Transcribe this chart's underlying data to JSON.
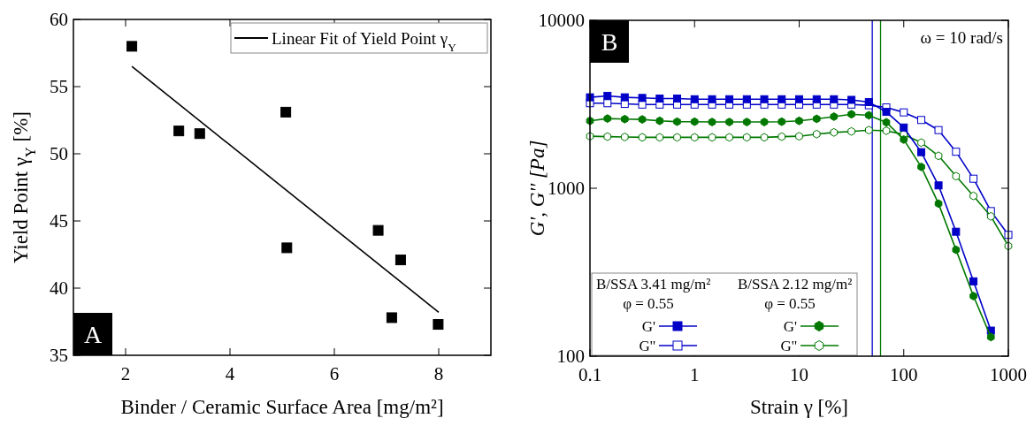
{
  "chart_data": [
    {
      "type": "scatter",
      "xlabel": "Binder / Ceramic Surface Area [mg/m²]",
      "ylabel": "Yield Point γ$_{Y}$ [%]",
      "annotations": [
        "A"
      ],
      "xlim": [
        1,
        9
      ],
      "xticks": [
        2,
        4,
        6,
        8
      ],
      "ylim": [
        35,
        60
      ],
      "yticks": [
        35,
        40,
        45,
        50,
        55,
        60
      ],
      "grid": false,
      "legend": "top right",
      "marker": "square",
      "series": [
        {
          "color": "#000000",
          "x": [
            2.12,
            3.02,
            3.42,
            5.07,
            5.09,
            6.84,
            7.1,
            7.27,
            7.99
          ],
          "values": [
            58.0,
            51.7,
            51.5,
            53.1,
            43.0,
            44.3,
            37.8,
            42.1,
            37.3
          ]
        },
        {
          "type": "line",
          "name": "Linear Fit of Yield Point γ$_{Y}$",
          "color": "#000000",
          "marker": "none",
          "x": [
            2.12,
            8.0
          ],
          "values": [
            56.5,
            38.2
          ]
        }
      ]
    },
    {
      "type": "line",
      "xlabel": "Strain γ [%]",
      "ylabel": "G', G'' [Pa]",
      "annotations": [
        "B",
        "ω = 10 rad/s",
        "B/SSA 3.41 mg/m²",
        "φ = 0.55",
        "B/SSA 2.12 mg/m²",
        "φ = 0.55"
      ],
      "log": "xy",
      "xlim": [
        0.1,
        1000
      ],
      "xticks": [
        0.1,
        1,
        10,
        100,
        1000
      ],
      "ylim": [
        100,
        10000
      ],
      "yticks": [
        100,
        1000,
        10000
      ],
      "grid": false,
      "legend": "bottom left",
      "line_style": "solid",
      "x": [
        0.1,
        0.147,
        0.215,
        0.316,
        0.464,
        0.681,
        1,
        1.47,
        2.15,
        3.16,
        4.64,
        6.81,
        10,
        14.7,
        21.5,
        31.6,
        46.4,
        68.1,
        100,
        147,
        215,
        316,
        464,
        681,
        1000
      ],
      "series": [
        {
          "name": "G'",
          "color": "#0000c8",
          "marker": "square",
          "values": [
            3480,
            3550,
            3480,
            3450,
            3420,
            3420,
            3390,
            3390,
            3390,
            3390,
            3390,
            3390,
            3390,
            3390,
            3390,
            3360,
            3260,
            2850,
            2300,
            1640,
            1040,
            551,
            279,
            142,
            null
          ]
        },
        {
          "name": "G''",
          "color": "#0000c8",
          "marker": "square-open",
          "values": [
            3210,
            3210,
            3180,
            3150,
            3150,
            3150,
            3150,
            3150,
            3150,
            3150,
            3150,
            3150,
            3150,
            3150,
            3150,
            3150,
            3120,
            3030,
            2830,
            2550,
            2220,
            1650,
            1140,
            731,
            528
          ]
        },
        {
          "name": "G'",
          "color": "#007800",
          "marker": "circle",
          "values": [
            2520,
            2600,
            2580,
            2570,
            2520,
            2490,
            2490,
            2480,
            2480,
            2480,
            2480,
            2490,
            2520,
            2590,
            2670,
            2760,
            2720,
            2470,
            1950,
            1340,
            810,
            430,
            228,
            130,
            null
          ]
        },
        {
          "name": "G''",
          "color": "#007800",
          "marker": "circle-open",
          "values": [
            2040,
            2030,
            2020,
            2010,
            2010,
            2010,
            2010,
            2010,
            2010,
            2010,
            2010,
            2030,
            2040,
            2100,
            2150,
            2180,
            2220,
            2200,
            2090,
            1870,
            1560,
            1180,
            900,
            680,
            453
          ]
        }
      ],
      "ref_lines": [
        {
          "axis": "x",
          "value": 50,
          "color": "#0000c8"
        },
        {
          "axis": "x",
          "value": 60,
          "color": "#007800"
        }
      ]
    }
  ]
}
